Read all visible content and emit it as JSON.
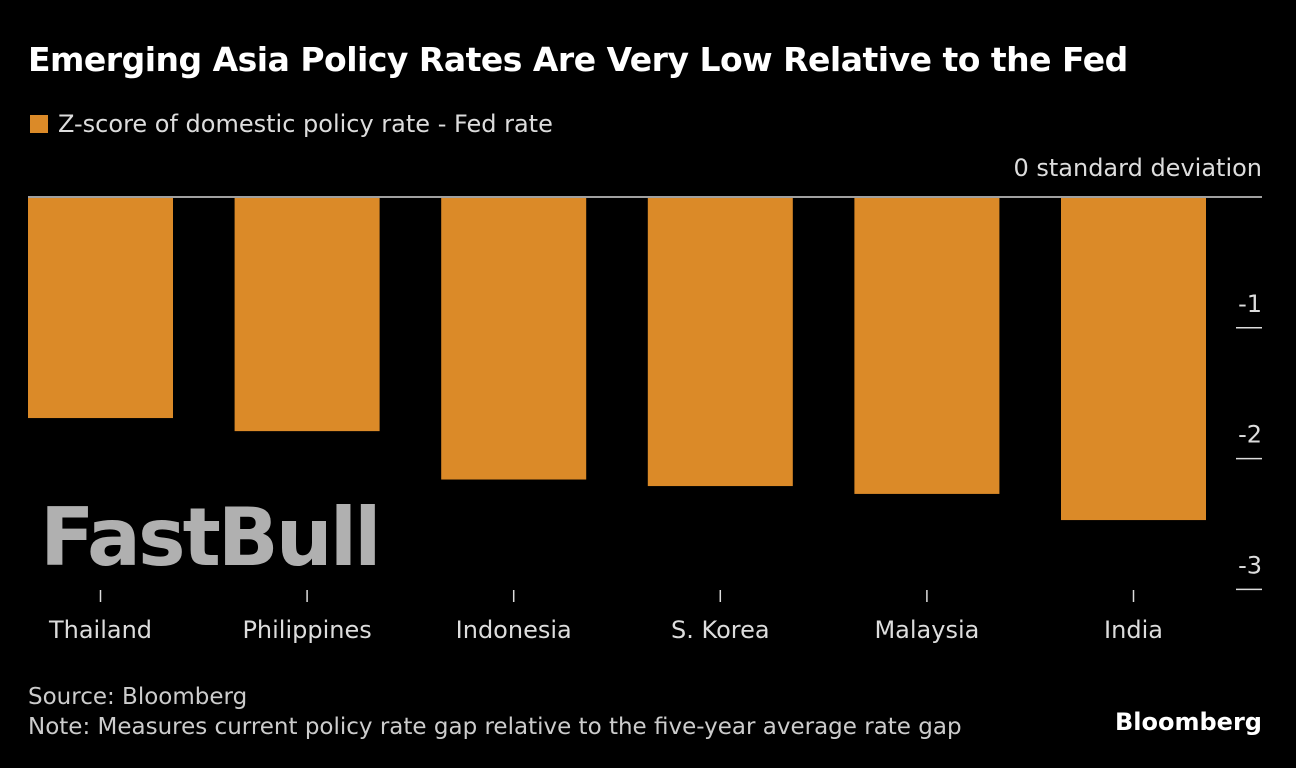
{
  "title": "Emerging Asia Policy Rates Are Very Low Relative to the Fed",
  "unit_label": "0 standard deviation",
  "footer": {
    "source": "Source: Bloomberg",
    "note": "Note: Measures current policy rate gap relative to the five-year average rate gap"
  },
  "watermark": "FastBull",
  "brand": "Bloomberg",
  "colors": {
    "bar": "#DB8A28",
    "background": "#000000"
  },
  "chart_data": {
    "type": "bar",
    "categories": [
      "Thailand",
      "Philippines",
      "Indonesia",
      "S. Korea",
      "Malaysia",
      "India"
    ],
    "series": [
      {
        "name": "Z-score of domestic policy rate - Fed rate",
        "values": [
          -1.69,
          -1.79,
          -2.16,
          -2.21,
          -2.27,
          -2.47
        ]
      }
    ],
    "ylim": [
      -3,
      0
    ],
    "yticks": [
      0,
      -1,
      -2,
      -3
    ],
    "ytick_labels": [
      "0",
      "-1",
      "-2",
      "-3"
    ],
    "ylabel": "",
    "xlabel": "",
    "legend_position": "top-left",
    "grid": false
  }
}
